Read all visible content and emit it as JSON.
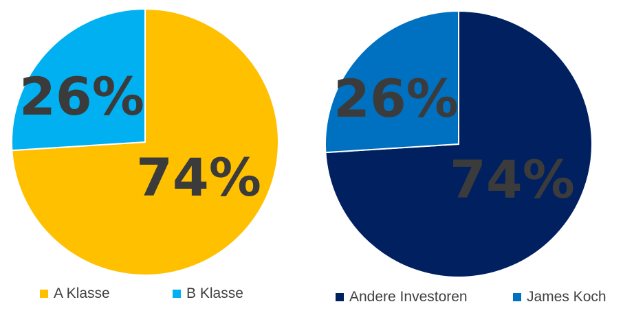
{
  "chart_data": [
    {
      "type": "pie",
      "slices": [
        {
          "name": "A Klasse",
          "value": 74,
          "label": "74%",
          "color": "#FFC000"
        },
        {
          "name": "B Klasse",
          "value": 26,
          "label": "26%",
          "color": "#00B0F0"
        }
      ],
      "legend": "bottom"
    },
    {
      "type": "pie",
      "slices": [
        {
          "name": "Andere Investoren",
          "value": 74,
          "label": "74%",
          "color": "#002060"
        },
        {
          "name": "James Koch",
          "value": 26,
          "label": "26%",
          "color": "#0070C0"
        }
      ],
      "legend": "bottom"
    }
  ]
}
